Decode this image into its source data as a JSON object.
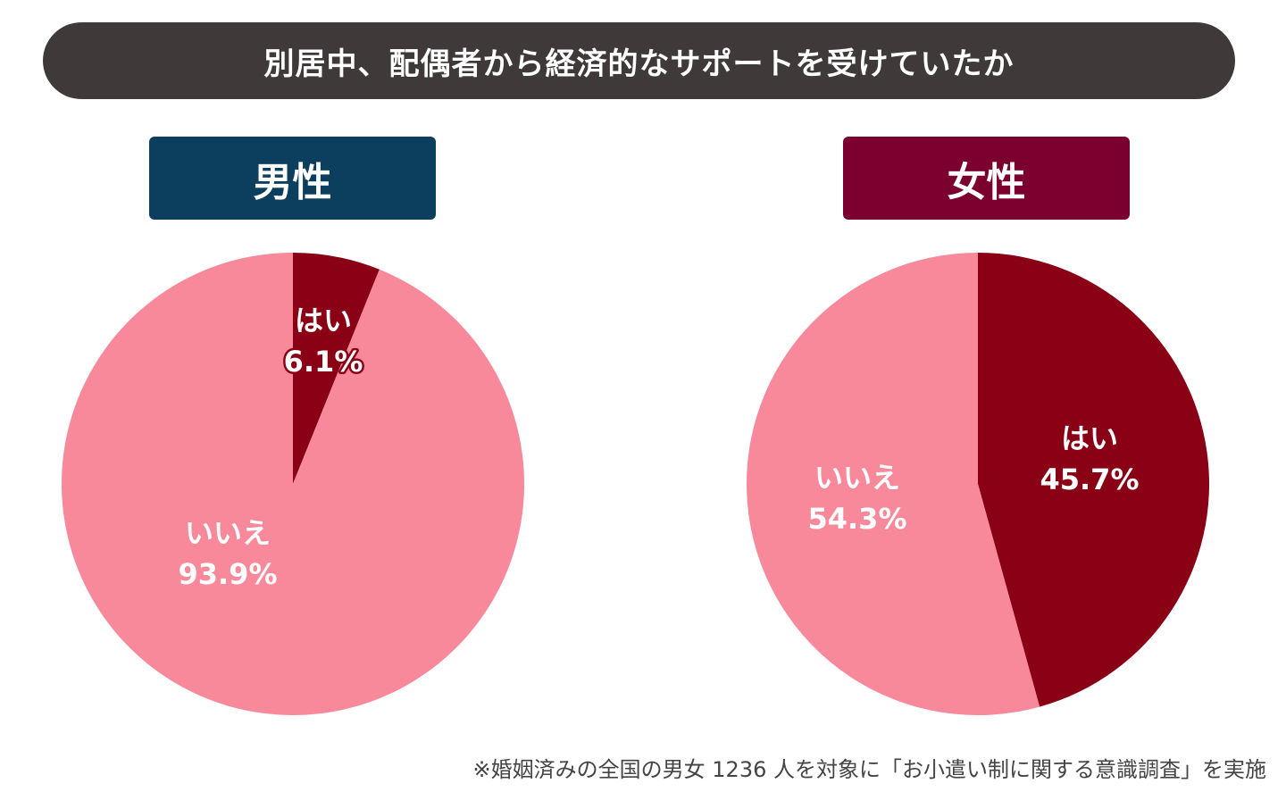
{
  "title": "別居中、配偶者から経済的なサポートを受けていたか",
  "footnote": "※婚姻済みの全国の男女 1236 人を対象に「お小遣い制に関する意識調査」を実施",
  "colors": {
    "yes": "#8a0014",
    "no": "#f8899b",
    "title_bg": "#3f3a39",
    "male_label_bg": "#0c3f5e",
    "female_label_bg": "#7b0030"
  },
  "chart_data": [
    {
      "type": "pie",
      "title": "男性",
      "categories": [
        "はい",
        "いいえ"
      ],
      "values": [
        6.1,
        93.9
      ],
      "labels": [
        "6.1%",
        "93.9%"
      ]
    },
    {
      "type": "pie",
      "title": "女性",
      "categories": [
        "はい",
        "いいえ"
      ],
      "values": [
        45.7,
        54.3
      ],
      "labels": [
        "45.7%",
        "54.3%"
      ]
    }
  ]
}
